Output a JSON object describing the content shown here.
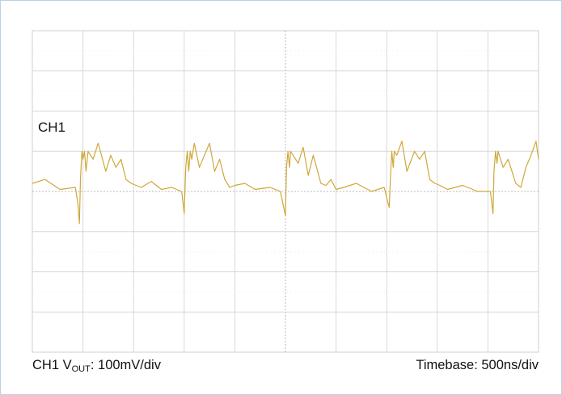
{
  "channel_label": "CH1",
  "footer_left": {
    "prefix": "CH1 V",
    "subscript": "OUT",
    "suffix": ": 100mV/div"
  },
  "footer_right": "Timebase: 500ns/div",
  "colors": {
    "trace": "#cfa83a",
    "grid": "#d8d8d8",
    "center_axis": "#b9b9b9",
    "border": "#bcd3e0"
  },
  "chart_data": {
    "type": "line",
    "title": "",
    "xlabel": "",
    "ylabel": "",
    "grid": true,
    "divisions": {
      "x": 10,
      "y": 8
    },
    "xlim": [
      0,
      10
    ],
    "ylim": [
      -4,
      4
    ],
    "series": [
      {
        "x": [
          0,
          0.25,
          0.55,
          0.85,
          0.9,
          0.93,
          0.95,
          0.98,
          1.0,
          1.03,
          1.06,
          1.1,
          1.2,
          1.3,
          1.45,
          1.55,
          1.65,
          1.75,
          1.85,
          1.95,
          2.05,
          2.15,
          2.35,
          2.55,
          2.75,
          2.95,
          3.0,
          3.03,
          3.06,
          3.09,
          3.12,
          3.15,
          3.2,
          3.3,
          3.4,
          3.5,
          3.6,
          3.7,
          3.8,
          3.9,
          4.0,
          4.2,
          4.4,
          4.7,
          4.9,
          5.0,
          5.02,
          5.05,
          5.08,
          5.1,
          5.15,
          5.25,
          5.35,
          5.45,
          5.55,
          5.7,
          5.8,
          5.9,
          6.0,
          6.15,
          6.4,
          6.7,
          6.95,
          7.05,
          7.08,
          7.1,
          7.13,
          7.15,
          7.2,
          7.3,
          7.4,
          7.55,
          7.65,
          7.75,
          7.85,
          7.95,
          8.05,
          8.2,
          8.5,
          8.8,
          9.05,
          9.1,
          9.12,
          9.15,
          9.18,
          9.2,
          9.3,
          9.4,
          9.55,
          9.65,
          9.75,
          9.85,
          9.95,
          10
        ],
        "y": [
          0.2,
          0.3,
          0.05,
          0.1,
          -0.3,
          -0.8,
          0.3,
          1.0,
          0.8,
          1.0,
          0.5,
          1.0,
          0.8,
          1.2,
          0.5,
          0.9,
          0.6,
          0.8,
          0.3,
          0.2,
          0.15,
          0.1,
          0.25,
          0.05,
          0.1,
          0.0,
          -0.55,
          0.6,
          1.0,
          0.5,
          1.0,
          0.8,
          1.2,
          0.6,
          0.9,
          1.2,
          0.5,
          0.8,
          0.3,
          0.1,
          0.15,
          0.2,
          0.05,
          0.1,
          0.0,
          -0.6,
          0.6,
          1.0,
          0.6,
          1.0,
          0.9,
          0.7,
          1.1,
          0.4,
          0.9,
          0.2,
          0.15,
          0.3,
          0.05,
          0.1,
          0.2,
          0.0,
          0.1,
          -0.4,
          0.5,
          1.0,
          0.6,
          1.0,
          0.9,
          1.25,
          0.5,
          1.0,
          0.8,
          1.0,
          0.3,
          0.2,
          0.15,
          0.05,
          0.15,
          0.0,
          0.0,
          -0.55,
          0.5,
          1.0,
          0.7,
          1.0,
          0.6,
          0.8,
          0.2,
          0.1,
          0.6,
          0.9,
          1.25,
          0.8
        ]
      }
    ]
  }
}
